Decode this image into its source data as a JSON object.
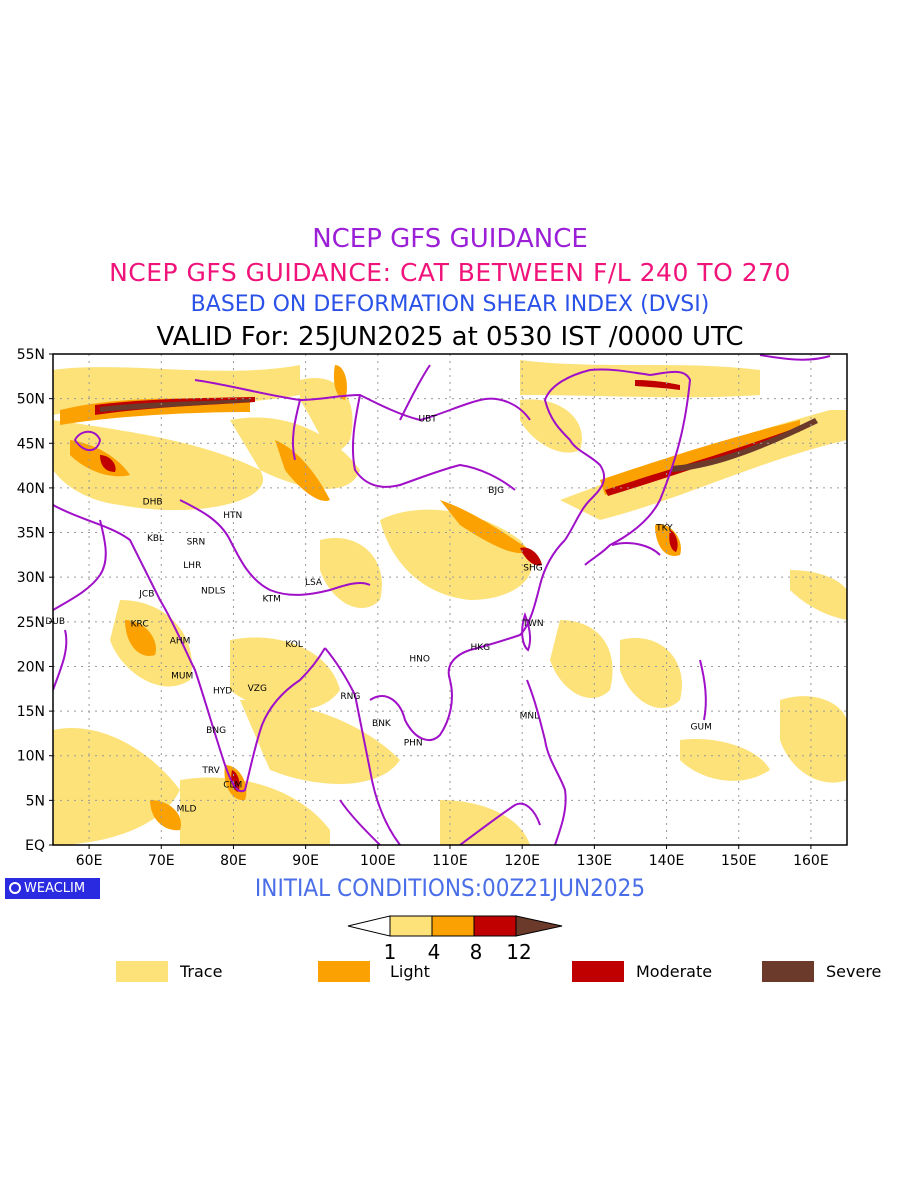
{
  "titles": {
    "line1": "NCEP GFS GUIDANCE",
    "line2": "NCEP GFS GUIDANCE: CAT BETWEEN F/L 240 TO 270",
    "line3": "BASED ON DEFORMATION SHEAR INDEX (DVSI)",
    "line4": "VALID For: 25JUN2025 at 0530 IST /0000 UTC"
  },
  "map": {
    "lon_range": [
      55,
      165
    ],
    "lat_range": [
      0,
      55
    ],
    "lat_labels": [
      "55N",
      "50N",
      "45N",
      "40N",
      "35N",
      "30N",
      "25N",
      "20N",
      "15N",
      "10N",
      "5N",
      "EQ"
    ],
    "lon_labels": [
      "60E",
      "70E",
      "80E",
      "90E",
      "100E",
      "110E",
      "120E",
      "130E",
      "140E",
      "150E",
      "160E"
    ],
    "colors": {
      "trace": "#fde27a",
      "light": "#fba202",
      "moderate": "#c00000",
      "severe": "#6b3a2b",
      "coast": "#a010c8",
      "grid": "#9a9a9a"
    },
    "stations": [
      {
        "code": "UBT",
        "lon": 106.9,
        "lat": 47.9
      },
      {
        "code": "BJG",
        "lon": 116.4,
        "lat": 39.9
      },
      {
        "code": "DHB",
        "lon": 68.8,
        "lat": 38.6
      },
      {
        "code": "HTN",
        "lon": 79.9,
        "lat": 37.1
      },
      {
        "code": "KBL",
        "lon": 69.2,
        "lat": 34.5
      },
      {
        "code": "SRN",
        "lon": 74.8,
        "lat": 34.1
      },
      {
        "code": "TKY",
        "lon": 139.7,
        "lat": 35.7
      },
      {
        "code": "LHR",
        "lon": 74.3,
        "lat": 31.5
      },
      {
        "code": "SHG",
        "lon": 121.5,
        "lat": 31.2
      },
      {
        "code": "LSA",
        "lon": 91.1,
        "lat": 29.6
      },
      {
        "code": "JCB",
        "lon": 68.0,
        "lat": 28.3
      },
      {
        "code": "NDLS",
        "lon": 77.2,
        "lat": 28.6
      },
      {
        "code": "KTM",
        "lon": 85.3,
        "lat": 27.7
      },
      {
        "code": "DUB",
        "lon": 55.3,
        "lat": 25.2
      },
      {
        "code": "TWN",
        "lon": 121.5,
        "lat": 25.0
      },
      {
        "code": "KRC",
        "lon": 67.0,
        "lat": 24.9
      },
      {
        "code": "AHM",
        "lon": 72.6,
        "lat": 23.0
      },
      {
        "code": "KOL",
        "lon": 88.4,
        "lat": 22.6
      },
      {
        "code": "HKG",
        "lon": 114.2,
        "lat": 22.3
      },
      {
        "code": "HNO",
        "lon": 105.8,
        "lat": 21.0
      },
      {
        "code": "MUM",
        "lon": 72.9,
        "lat": 19.1
      },
      {
        "code": "HYD",
        "lon": 78.5,
        "lat": 17.4
      },
      {
        "code": "VZG",
        "lon": 83.3,
        "lat": 17.7
      },
      {
        "code": "RNG",
        "lon": 96.2,
        "lat": 16.8
      },
      {
        "code": "MNL",
        "lon": 121.0,
        "lat": 14.6
      },
      {
        "code": "GUM",
        "lon": 144.8,
        "lat": 13.4
      },
      {
        "code": "BNK",
        "lon": 100.5,
        "lat": 13.8
      },
      {
        "code": "BNG",
        "lon": 77.6,
        "lat": 13.0
      },
      {
        "code": "PHN",
        "lon": 104.9,
        "lat": 11.6
      },
      {
        "code": "TRV",
        "lon": 76.9,
        "lat": 8.5
      },
      {
        "code": "CLM",
        "lon": 79.9,
        "lat": 6.9
      },
      {
        "code": "MLD",
        "lon": 73.5,
        "lat": 4.2
      }
    ]
  },
  "footer": {
    "badge": "WEACLIM",
    "initial": "INITIAL CONDITIONS:00Z21JUN2025"
  },
  "colorbar": {
    "ticks": [
      "1",
      "4",
      "8",
      "12"
    ],
    "colors": [
      "#fde27a",
      "#fba202",
      "#c00000",
      "#6b3a2b"
    ]
  },
  "legend": [
    {
      "label": "Trace",
      "color": "#fde27a"
    },
    {
      "label": "Light",
      "color": "#fba202"
    },
    {
      "label": "Moderate",
      "color": "#c00000"
    },
    {
      "label": "Severe",
      "color": "#6b3a2b"
    }
  ]
}
